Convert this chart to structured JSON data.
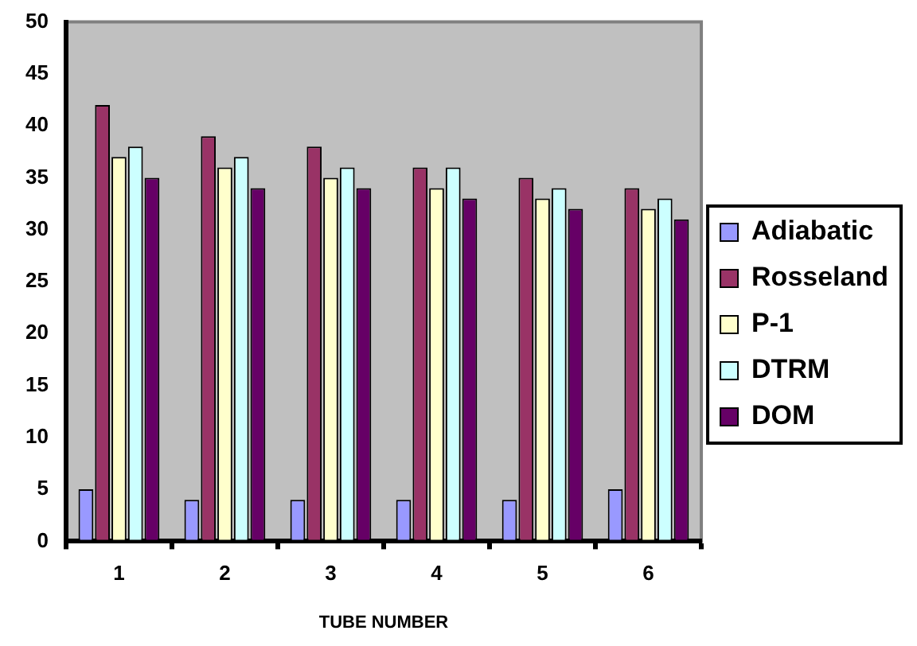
{
  "chart_data": {
    "type": "bar",
    "xlabel": "TUBE NUMBER",
    "categories": [
      "1",
      "2",
      "3",
      "4",
      "5",
      "6"
    ],
    "series": [
      {
        "name": "Adiabatic",
        "color": "#9999ff",
        "values": [
          5,
          4,
          4,
          4,
          4,
          5
        ]
      },
      {
        "name": "Rosseland",
        "color": "#993366",
        "values": [
          42,
          39,
          38,
          36,
          35,
          34
        ]
      },
      {
        "name": "P-1",
        "color": "#ffffcc",
        "values": [
          37,
          36,
          35,
          34,
          33,
          32
        ]
      },
      {
        "name": "DTRM",
        "color": "#ccffff",
        "values": [
          38,
          37,
          36,
          36,
          34,
          33
        ]
      },
      {
        "name": "DOM",
        "color": "#660066",
        "values": [
          35,
          34,
          34,
          33,
          32,
          31
        ]
      }
    ],
    "ylim": [
      0,
      50
    ],
    "yticks": [
      0,
      5,
      10,
      15,
      20,
      25,
      30,
      35,
      40,
      45,
      50
    ],
    "grid": false,
    "legend": "right"
  }
}
